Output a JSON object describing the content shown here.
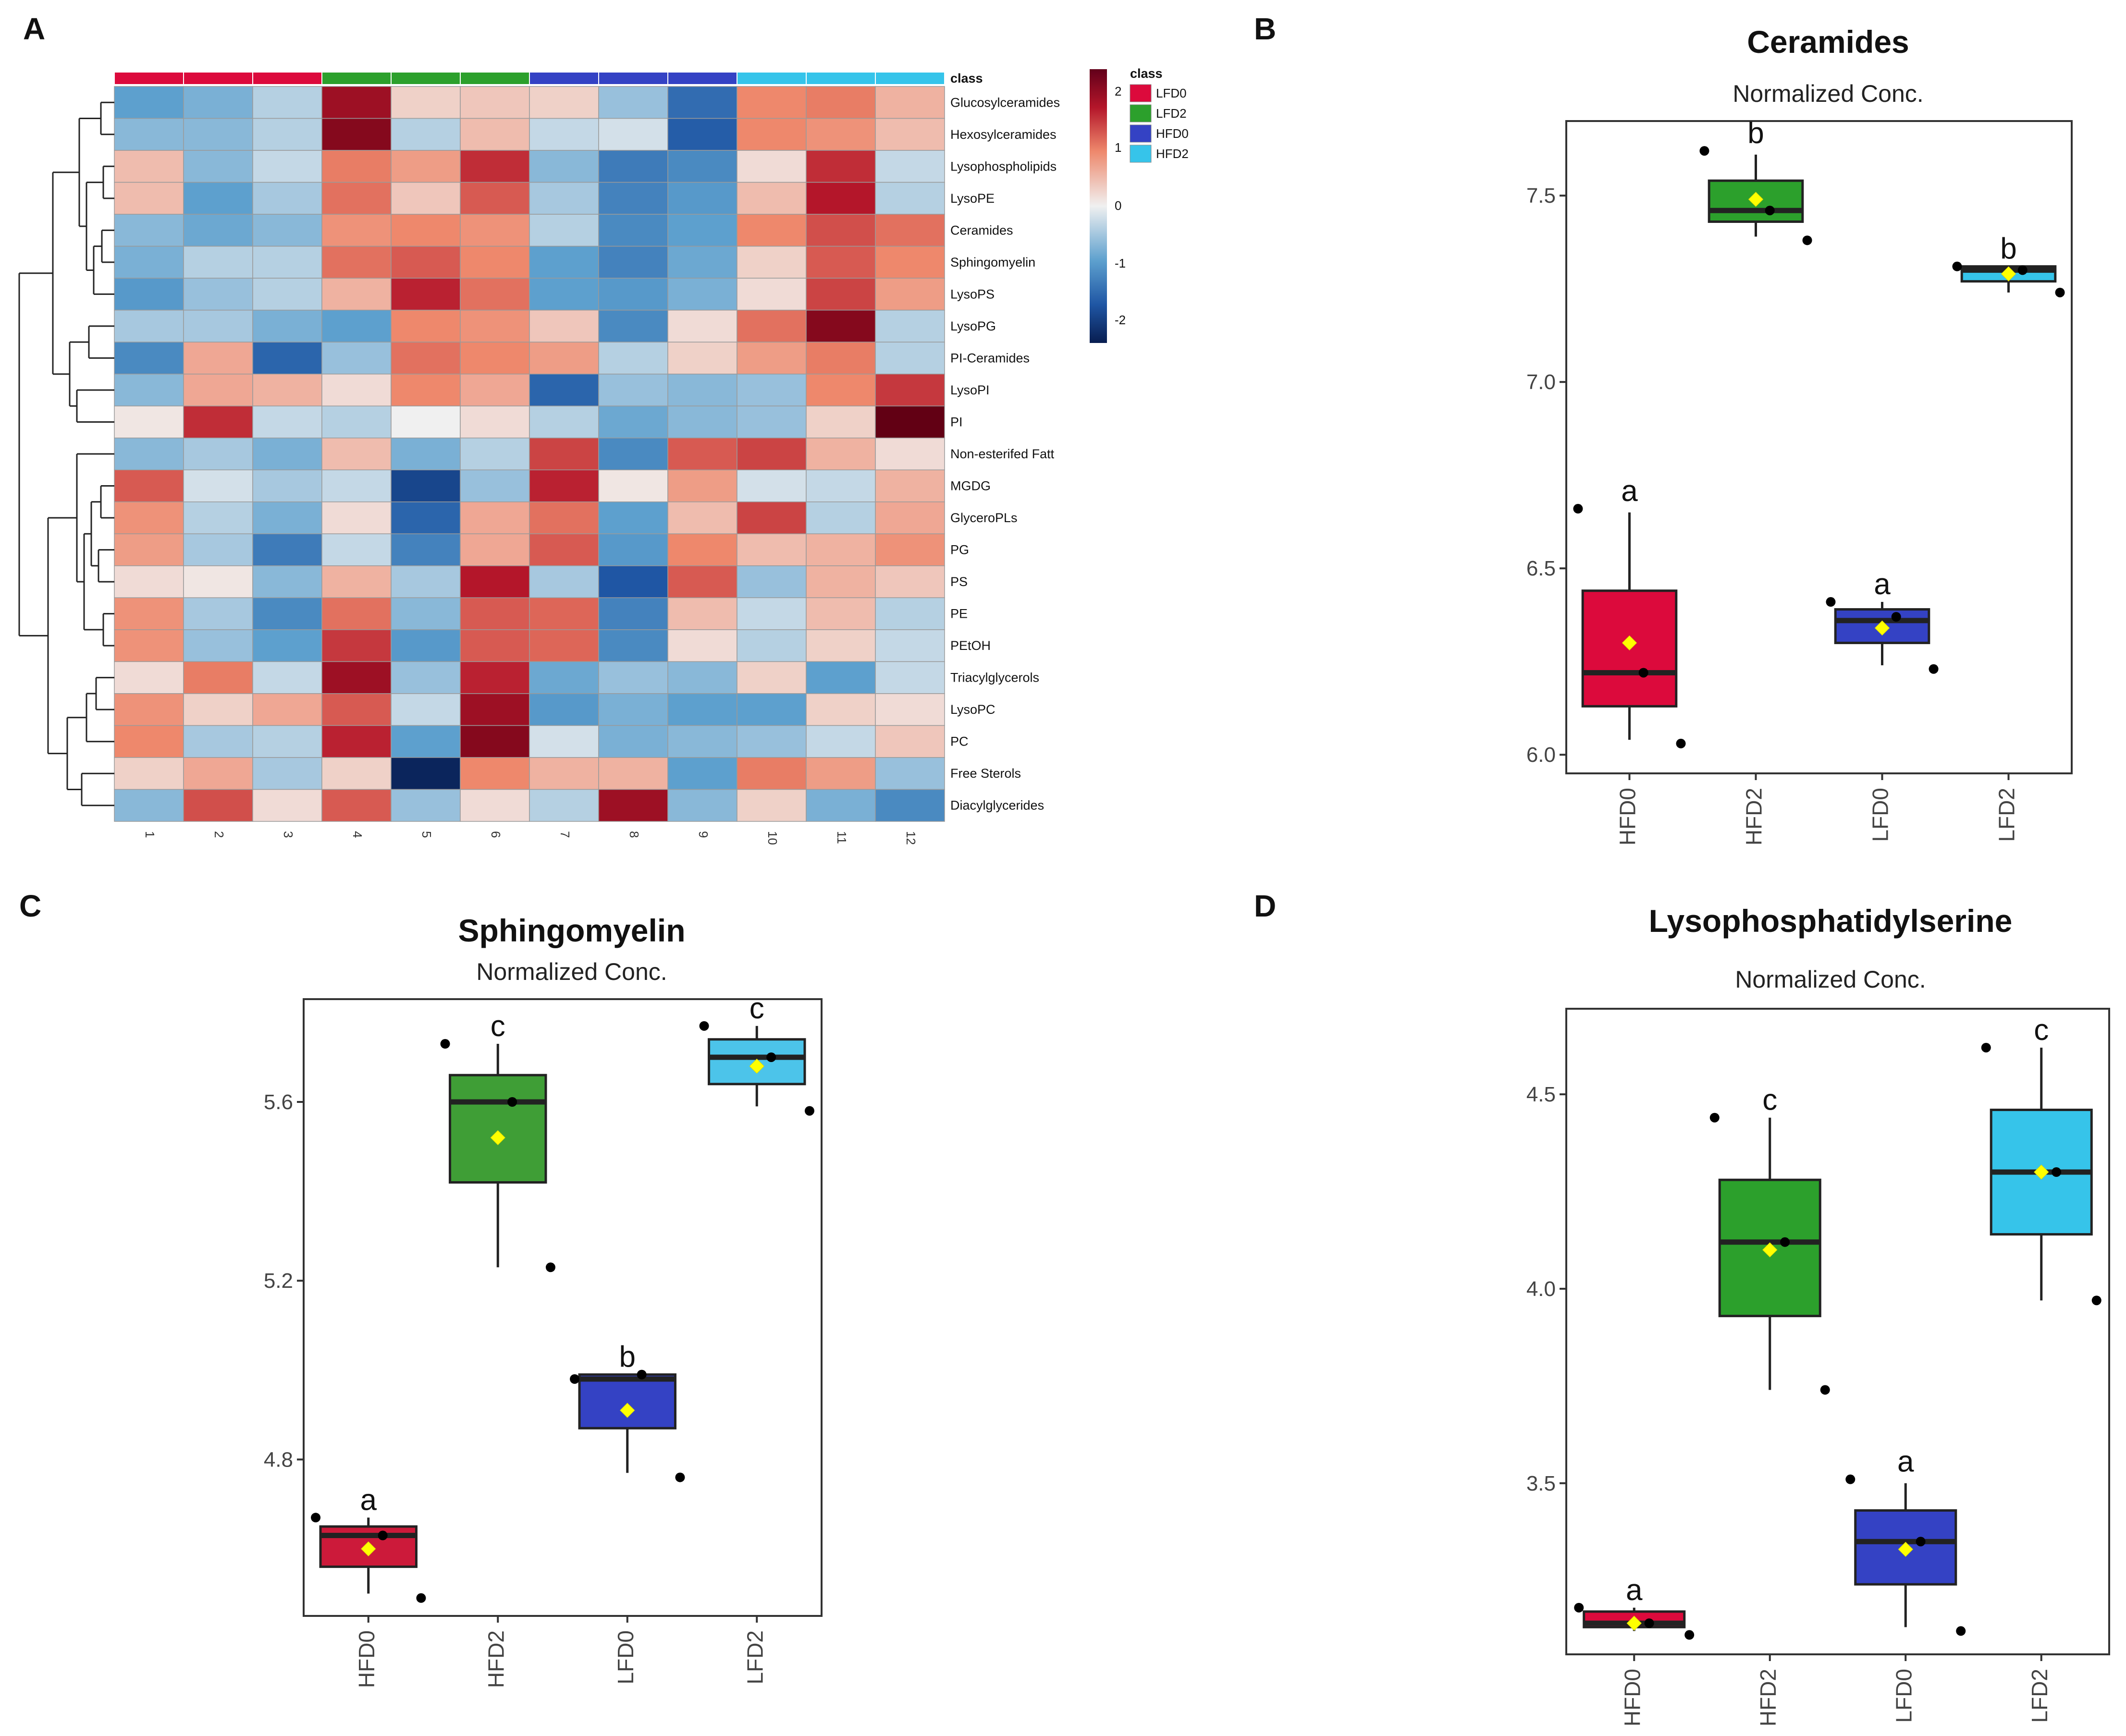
{
  "panels": {
    "a": "A",
    "b": "B",
    "c": "C",
    "d": "D"
  },
  "heatmap": {
    "annotation_label": "class",
    "legend_title": "class",
    "legend": [
      {
        "label": "LFD0",
        "color": "#dc0a3c"
      },
      {
        "label": "LFD2",
        "color": "#2ca02c"
      },
      {
        "label": "HFD0",
        "color": "#3442c4"
      },
      {
        "label": "HFD2",
        "color": "#36c4ea"
      }
    ],
    "scale_ticks": [
      "2",
      "1",
      "0",
      "-1",
      "-2"
    ],
    "columns": [
      "1",
      "2",
      "3",
      "4",
      "5",
      "6",
      "7",
      "8",
      "9",
      "10",
      "11",
      "12"
    ],
    "column_classes": [
      "LFD0",
      "LFD0",
      "LFD0",
      "LFD2",
      "LFD2",
      "LFD2",
      "HFD0",
      "HFD0",
      "HFD0",
      "HFD2",
      "HFD2",
      "HFD2"
    ],
    "rows": [
      "Glucosylceramides",
      "Hexosylceramides",
      "Lysophospholipids",
      "LysoPE",
      "Ceramides",
      "Sphingomyelin",
      "LysoPS",
      "LysoPG",
      "PI-Ceramides",
      "LysoPI",
      "PI",
      "Non-esterifed Fatt",
      "MGDG",
      "GlyceroPLs",
      "PG",
      "PS",
      "PE",
      "PEtOH",
      "Triacylglycerols",
      "LysoPC",
      "PC",
      "Free Sterols",
      "Diacylglycerides"
    ],
    "values": [
      [
        -1.0,
        -0.8,
        -0.4,
        2.2,
        0.3,
        0.4,
        0.3,
        -0.6,
        -1.7,
        1.0,
        1.1,
        0.6
      ],
      [
        -0.7,
        -0.7,
        -0.4,
        2.4,
        -0.4,
        0.5,
        -0.3,
        -0.2,
        -1.9,
        1.0,
        0.9,
        0.5
      ],
      [
        0.5,
        -0.7,
        -0.3,
        1.1,
        0.8,
        1.8,
        -0.7,
        -1.5,
        -1.3,
        0.2,
        1.8,
        -0.3
      ],
      [
        0.5,
        -1.0,
        -0.5,
        1.2,
        0.4,
        1.4,
        -0.5,
        -1.4,
        -1.1,
        0.5,
        2.0,
        -0.4
      ],
      [
        -0.7,
        -0.9,
        -0.7,
        0.9,
        1.0,
        0.9,
        -0.4,
        -1.3,
        -1.0,
        1.0,
        1.5,
        1.2
      ],
      [
        -0.8,
        -0.4,
        -0.4,
        1.2,
        1.4,
        1.0,
        -1.0,
        -1.4,
        -0.9,
        0.3,
        1.4,
        1.0
      ],
      [
        -1.1,
        -0.6,
        -0.4,
        0.6,
        1.9,
        1.2,
        -1.0,
        -1.1,
        -0.8,
        0.2,
        1.6,
        0.8
      ],
      [
        -0.5,
        -0.5,
        -0.8,
        -1.0,
        1.0,
        0.9,
        0.4,
        -1.3,
        0.2,
        1.2,
        2.4,
        -0.4
      ],
      [
        -1.3,
        0.7,
        -1.8,
        -0.6,
        1.2,
        1.0,
        0.8,
        -0.4,
        0.3,
        0.8,
        1.1,
        -0.4
      ],
      [
        -0.7,
        0.7,
        0.6,
        0.2,
        1.0,
        0.7,
        -1.8,
        -0.6,
        -0.7,
        -0.6,
        1.0,
        1.7
      ],
      [
        0.1,
        1.8,
        -0.3,
        -0.4,
        0.0,
        0.2,
        -0.4,
        -0.9,
        -0.7,
        -0.6,
        0.3,
        2.7
      ],
      [
        -0.7,
        -0.5,
        -0.8,
        0.5,
        -0.8,
        -0.4,
        1.6,
        -1.3,
        1.4,
        1.6,
        0.6,
        0.2
      ],
      [
        1.4,
        -0.2,
        -0.5,
        -0.3,
        -2.2,
        -0.6,
        1.9,
        0.1,
        0.8,
        -0.2,
        -0.3,
        0.6
      ],
      [
        0.9,
        -0.4,
        -0.8,
        0.2,
        -1.8,
        0.7,
        1.2,
        -1.0,
        0.5,
        1.6,
        -0.4,
        0.7
      ],
      [
        0.8,
        -0.5,
        -1.5,
        -0.3,
        -1.4,
        0.7,
        1.4,
        -1.1,
        1.0,
        0.5,
        0.6,
        0.9
      ],
      [
        0.2,
        0.1,
        -0.7,
        0.6,
        -0.5,
        2.0,
        -0.5,
        -2.0,
        1.4,
        -0.6,
        0.6,
        0.4
      ],
      [
        0.9,
        -0.5,
        -1.3,
        1.2,
        -0.7,
        1.4,
        1.3,
        -1.4,
        0.5,
        -0.3,
        0.5,
        -0.4
      ],
      [
        0.9,
        -0.6,
        -1.0,
        1.7,
        -1.1,
        1.4,
        1.3,
        -1.3,
        0.2,
        -0.4,
        0.3,
        -0.3
      ],
      [
        0.2,
        1.1,
        -0.3,
        2.2,
        -0.6,
        1.9,
        -0.9,
        -0.6,
        -0.7,
        0.3,
        -1.0,
        -0.3
      ],
      [
        0.9,
        0.3,
        0.7,
        1.4,
        -0.3,
        2.2,
        -1.1,
        -0.8,
        -1.0,
        -1.0,
        0.3,
        0.2
      ],
      [
        1.0,
        -0.5,
        -0.4,
        1.9,
        -1.0,
        2.4,
        -0.2,
        -0.8,
        -0.7,
        -0.6,
        -0.3,
        0.4
      ],
      [
        0.3,
        0.7,
        -0.5,
        0.3,
        -2.6,
        1.0,
        0.6,
        0.6,
        -1.0,
        1.1,
        0.8,
        -0.6
      ],
      [
        -0.7,
        1.5,
        0.2,
        1.4,
        -0.6,
        0.2,
        -0.4,
        2.2,
        -0.7,
        0.3,
        -0.8,
        -1.3
      ]
    ]
  },
  "chart_data": [
    {
      "type": "box",
      "title": "Ceramides",
      "subtitle": "Normalized Conc.",
      "categories": [
        "HFD0",
        "HFD2",
        "LFD0",
        "LFD2"
      ],
      "colors": [
        "#dc0a3c",
        "#2ca02c",
        "#3442c4",
        "#36c4ea"
      ],
      "ylim": [
        5.95,
        7.7
      ],
      "yticks": [
        "6.0",
        "6.5",
        "7.0",
        "7.5"
      ],
      "boxes": [
        {
          "q1": 6.13,
          "median": 6.22,
          "q3": 6.44,
          "whisker_low": 6.04,
          "whisker_high": 6.65,
          "mean": 6.3,
          "points": [
            6.66,
            6.22,
            6.03
          ],
          "letter": "a"
        },
        {
          "q1": 7.43,
          "median": 7.46,
          "q3": 7.54,
          "whisker_low": 7.39,
          "whisker_high": 7.61,
          "mean": 7.49,
          "points": [
            7.62,
            7.46,
            7.38
          ],
          "letter": "b"
        },
        {
          "q1": 6.3,
          "median": 6.36,
          "q3": 6.39,
          "whisker_low": 6.24,
          "whisker_high": 6.41,
          "mean": 6.34,
          "points": [
            6.41,
            6.37,
            6.23
          ],
          "letter": "a"
        },
        {
          "q1": 7.27,
          "median": 7.3,
          "q3": 7.31,
          "whisker_low": 7.24,
          "whisker_high": 7.31,
          "mean": 7.29,
          "points": [
            7.31,
            7.3,
            7.24
          ],
          "letter": "b"
        }
      ]
    },
    {
      "type": "box",
      "title": "Sphingomyelin",
      "subtitle": "Normalized Conc.",
      "categories": [
        "HFD0",
        "HFD2",
        "LFD0",
        "LFD2"
      ],
      "colors": [
        "#cc1a3a",
        "#3f9e36",
        "#3442c4",
        "#4cc4ea"
      ],
      "ylim": [
        4.45,
        5.83
      ],
      "yticks": [
        "4.8",
        "5.2",
        "5.6"
      ],
      "boxes": [
        {
          "q1": 4.56,
          "median": 4.63,
          "q3": 4.65,
          "whisker_low": 4.5,
          "whisker_high": 4.67,
          "mean": 4.6,
          "points": [
            4.67,
            4.63,
            4.49
          ],
          "letter": "a"
        },
        {
          "q1": 5.42,
          "median": 5.6,
          "q3": 5.66,
          "whisker_low": 5.23,
          "whisker_high": 5.73,
          "mean": 5.52,
          "points": [
            5.73,
            5.6,
            5.23
          ],
          "letter": "c"
        },
        {
          "q1": 4.87,
          "median": 4.98,
          "q3": 4.99,
          "whisker_low": 4.77,
          "whisker_high": 4.99,
          "mean": 4.91,
          "points": [
            4.98,
            4.99,
            4.76
          ],
          "letter": "b"
        },
        {
          "q1": 5.64,
          "median": 5.7,
          "q3": 5.74,
          "whisker_low": 5.59,
          "whisker_high": 5.77,
          "mean": 5.68,
          "points": [
            5.77,
            5.7,
            5.58
          ],
          "letter": "c"
        }
      ]
    },
    {
      "type": "box",
      "title": "Lysophosphatidylserine",
      "subtitle": "Normalized Conc.",
      "categories": [
        "HFD0",
        "HFD2",
        "LFD0",
        "LFD2"
      ],
      "colors": [
        "#dc0a3c",
        "#2ca02c",
        "#3442c4",
        "#36c4ea"
      ],
      "ylim": [
        3.06,
        4.72
      ],
      "yticks": [
        "3.5",
        "4.0",
        "4.5"
      ],
      "boxes": [
        {
          "q1": 3.13,
          "median": 3.14,
          "q3": 3.17,
          "whisker_low": 3.12,
          "whisker_high": 3.18,
          "mean": 3.14,
          "points": [
            3.18,
            3.14,
            3.11
          ],
          "letter": "a"
        },
        {
          "q1": 3.93,
          "median": 4.12,
          "q3": 4.28,
          "whisker_low": 3.74,
          "whisker_high": 4.44,
          "mean": 4.1,
          "points": [
            4.44,
            4.12,
            3.74
          ],
          "letter": "c"
        },
        {
          "q1": 3.24,
          "median": 3.35,
          "q3": 3.43,
          "whisker_low": 3.13,
          "whisker_high": 3.5,
          "mean": 3.33,
          "points": [
            3.51,
            3.35,
            3.12
          ],
          "letter": "a"
        },
        {
          "q1": 4.14,
          "median": 4.3,
          "q3": 4.46,
          "whisker_low": 3.97,
          "whisker_high": 4.62,
          "mean": 4.3,
          "points": [
            4.62,
            4.3,
            3.97
          ],
          "letter": "c"
        }
      ]
    }
  ]
}
